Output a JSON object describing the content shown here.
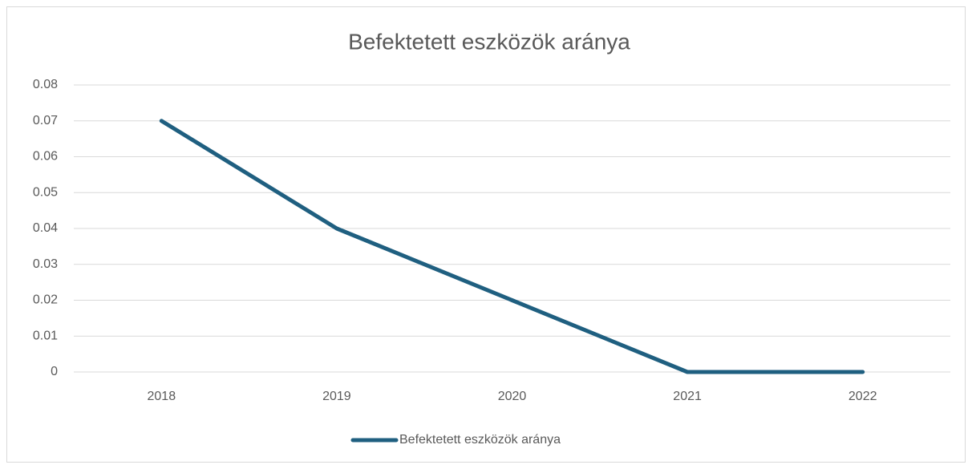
{
  "chart_data": {
    "type": "line",
    "title": "Befektetett eszközök aránya",
    "categories": [
      "2018",
      "2019",
      "2020",
      "2021",
      "2022"
    ],
    "series": [
      {
        "name": "Befektetett eszközök aránya",
        "color": "#1f5f80",
        "values": [
          0.07,
          0.04,
          0.02,
          0,
          0
        ]
      }
    ],
    "ylim": [
      0,
      0.08
    ],
    "yticks": [
      0,
      0.01,
      0.02,
      0.03,
      0.04,
      0.05,
      0.06,
      0.07,
      0.08
    ],
    "grid": true,
    "legend": "bottom"
  }
}
